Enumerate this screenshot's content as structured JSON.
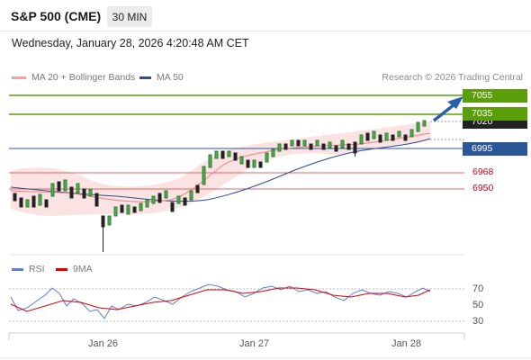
{
  "header": {
    "instrument": "S&P 500 (CME)",
    "timeframe": "30 MIN",
    "datetime": "Wednesday, January 28, 2026 4:20:48 AM CET"
  },
  "legend": {
    "ma20_label": "MA 20 + Bollinger Bands",
    "ma50_label": "MA 50",
    "credit": "Research © 2026 Trading Central"
  },
  "colors": {
    "resistance": "#5a9e0a",
    "pivot": "#2b5797",
    "support": "#e06666",
    "ma20": "#f08080",
    "ma50": "#2f4f8f",
    "rsi": "#5b7fd6",
    "rsi_ma": "#e00000"
  },
  "levels": {
    "resistance_2": "7055",
    "resistance_1": "7035",
    "last_price": "7020",
    "pivot": "6995",
    "support_1": "6968",
    "support_2": "6950"
  },
  "rsi_panel": {
    "rsi_label": "RSI",
    "ma_label": "9MA",
    "ticks": [
      "70",
      "50",
      "30"
    ]
  },
  "x_axis": {
    "labels": [
      "Jan 26",
      "Jan 27",
      "Jan 28"
    ]
  }
}
